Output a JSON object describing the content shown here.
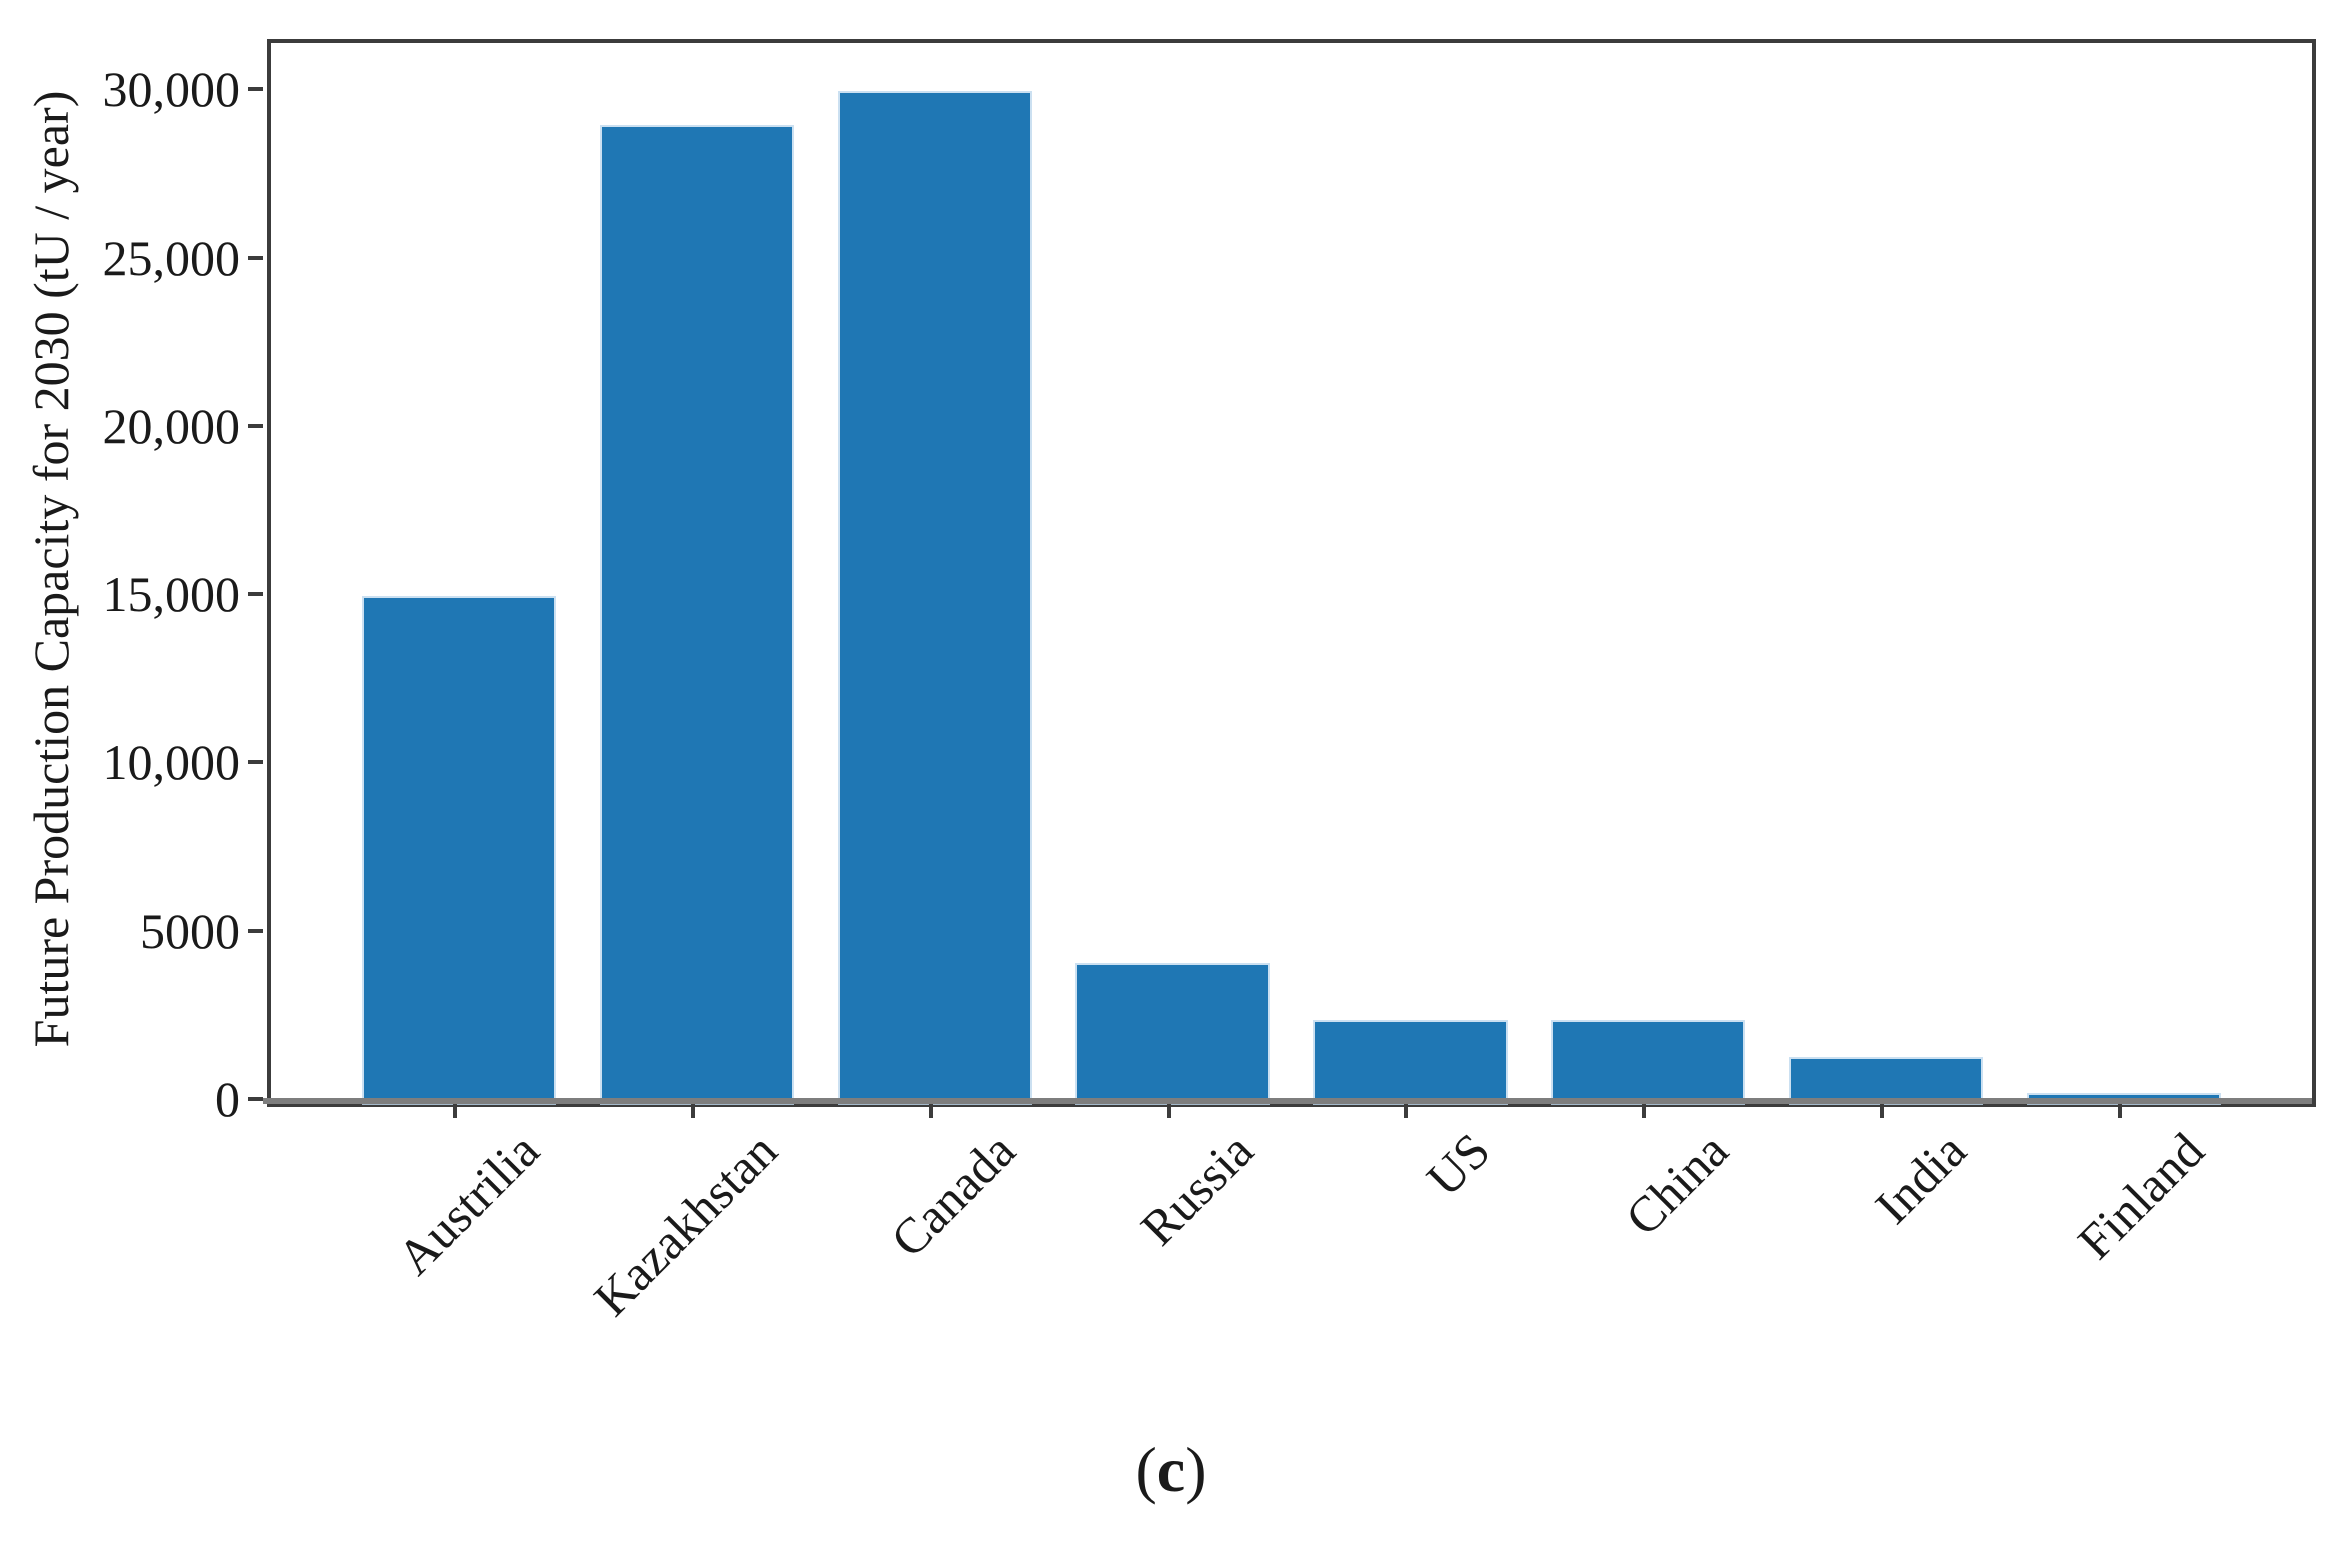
{
  "figure": {
    "caption": {
      "open": "(",
      "letter": "c",
      "close": ")"
    }
  },
  "chart_data": {
    "type": "bar",
    "title": "",
    "xlabel": "",
    "ylabel": "Future Production Capacity for 2030 (tU / year)",
    "categories": [
      "Austrilia",
      "Kazakhstan",
      "Canada",
      "Russia",
      "US",
      "China",
      "India",
      "Finland"
    ],
    "values": [
      15000,
      29000,
      30000,
      4100,
      2400,
      2400,
      1300,
      250
    ],
    "bar_color": "#1f77b4",
    "frame_color": "#3c3c3c",
    "baseline_color": "#7e7e7e",
    "text_color": "#1a1a1a",
    "ylim": [
      0,
      31500
    ],
    "yticks": [
      {
        "value": 0,
        "label": "0"
      },
      {
        "value": 5000,
        "label": "5000"
      },
      {
        "value": 10000,
        "label": "10,000"
      },
      {
        "value": 15000,
        "label": "15,000"
      },
      {
        "value": 20000,
        "label": "20,000"
      },
      {
        "value": 25000,
        "label": "25,000"
      },
      {
        "value": 30000,
        "label": "30,000"
      }
    ],
    "x_tick_rotation_deg": 45,
    "grid": false,
    "legend": "none"
  }
}
